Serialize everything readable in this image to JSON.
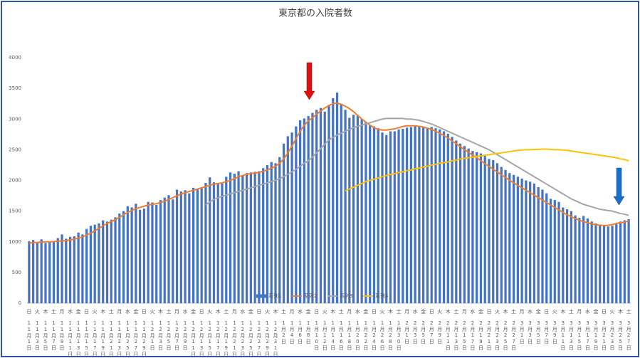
{
  "chart_data": {
    "type": "bar_line",
    "title": "東京都の入院者数",
    "categories": [
      "11月1日",
      null,
      "11月3日",
      null,
      "11月5日",
      null,
      "11月7日",
      null,
      "11月9日",
      null,
      "11月11日",
      null,
      "11月13日",
      null,
      "11月15日",
      null,
      "11月17日",
      null,
      "11月19日",
      null,
      "11月21日",
      null,
      "11月23日",
      null,
      "11月25日",
      null,
      "11月27日",
      null,
      "11月29日",
      null,
      "12月1日",
      null,
      "12月3日",
      null,
      "12月5日",
      null,
      "12月7日",
      null,
      "12月9日",
      null,
      "12月11日",
      null,
      "12月13日",
      null,
      "12月15日",
      null,
      "12月17日",
      null,
      "12月19日",
      null,
      "12月21日",
      null,
      "12月23日",
      null,
      "12月25日",
      null,
      "12月27日",
      null,
      "12月29日",
      null,
      "12月31日",
      null,
      "1月2日",
      null,
      "1月4日",
      null,
      "1月6日",
      null,
      "1月8日",
      null,
      "1月10日",
      null,
      "1月12日",
      null,
      "1月14日",
      null,
      "1月16日",
      null,
      "1月18日",
      null,
      "1月20日",
      null,
      "1月22日",
      null,
      "1月24日",
      null,
      "1月26日",
      null,
      "1月28日",
      null,
      "1月30日",
      null,
      "2月1日",
      null,
      "2月3日",
      null,
      "2月5日",
      null,
      "2月7日",
      null,
      "2月9日",
      null,
      "2月11日",
      null,
      "2月13日",
      null,
      "2月15日",
      null,
      "2月17日",
      null,
      "2月19日",
      null,
      "2月21日",
      null,
      "2月23日",
      null,
      "2月25日",
      null,
      "2月27日",
      null,
      "3月1日",
      null,
      "3月3日",
      null,
      "3月5日",
      null,
      "3月7日",
      null,
      "3月9日",
      null,
      "3月11日",
      null,
      "3月13日",
      null,
      "3月15日",
      null,
      "3月17日",
      null,
      "3月19日",
      null,
      "3月21日",
      null,
      "3月23日",
      null,
      "3月25日",
      null,
      "3月27日"
    ],
    "weekdays": [
      "日",
      null,
      "火",
      null,
      "木",
      null,
      "土",
      null,
      "月",
      null,
      "水",
      null,
      "金",
      null,
      "日",
      null,
      "火",
      null,
      "木",
      null,
      "土",
      null,
      "月",
      null,
      "水",
      null,
      "金",
      null,
      "日",
      null,
      "火",
      null,
      "木",
      null,
      "土",
      null,
      "月",
      null,
      "水",
      null,
      "金",
      null,
      "日",
      null,
      "火",
      null,
      "木",
      null,
      "土",
      null,
      "月",
      null,
      "水",
      null,
      "金",
      null,
      "日",
      null,
      "火",
      null,
      "木",
      null,
      "土",
      null,
      "月",
      null,
      "水",
      null,
      "金",
      null,
      "日",
      null,
      "火",
      null,
      "木",
      null,
      "土",
      null,
      "月",
      null,
      "水",
      null,
      "金",
      null,
      "日",
      null,
      "火",
      null,
      "木",
      null,
      "土",
      null,
      "月",
      null,
      "水",
      null,
      "金",
      null,
      "日",
      null,
      "火",
      null,
      "木",
      null,
      "土",
      null,
      "月",
      null,
      "水",
      null,
      "金",
      null,
      "日",
      null,
      "火",
      null,
      "木",
      null,
      "土",
      null,
      "月",
      null,
      "水",
      null,
      "金",
      null,
      "日",
      null,
      "火",
      null,
      "木",
      null,
      "土",
      null,
      "月",
      null,
      "水",
      null,
      "金",
      null,
      "日",
      null,
      "火",
      null,
      "木",
      null,
      "土"
    ],
    "series": [
      {
        "name": "系列1",
        "type": "bar",
        "color": "#4472c4",
        "values": [
          1010,
          1030,
          990,
          1040,
          980,
          990,
          1010,
          1060,
          1120,
          1050,
          1080,
          1090,
          1150,
          1120,
          1210,
          1260,
          1280,
          1300,
          1350,
          1330,
          1360,
          1400,
          1460,
          1500,
          1580,
          1560,
          1620,
          1520,
          1540,
          1650,
          1640,
          1600,
          1680,
          1720,
          1760,
          1690,
          1850,
          1820,
          1840,
          1790,
          1880,
          1860,
          1870,
          1960,
          2050,
          1970,
          1960,
          1950,
          2060,
          2130,
          2110,
          2150,
          2080,
          2120,
          2130,
          2140,
          2150,
          2200,
          2250,
          2300,
          2280,
          2380,
          2600,
          2720,
          2780,
          2880,
          2980,
          3010,
          3050,
          3100,
          3150,
          3180,
          3120,
          3230,
          3340,
          3430,
          3250,
          3150,
          3020,
          3070,
          3060,
          3000,
          2950,
          2900,
          2880,
          2850,
          2780,
          2740,
          2800,
          2800,
          2830,
          2840,
          2860,
          2870,
          2890,
          2880,
          2870,
          2860,
          2870,
          2850,
          2830,
          2800,
          2760,
          2710,
          2650,
          2600,
          2560,
          2520,
          2480,
          2460,
          2440,
          2400,
          2350,
          2330,
          2280,
          2220,
          2170,
          2120,
          2090,
          2060,
          2030,
          2000,
          1980,
          1950,
          1890,
          1850,
          1790,
          1700,
          1680,
          1650,
          1560,
          1530,
          1500,
          1430,
          1390,
          1420,
          1380,
          1330,
          1300,
          1280,
          1260,
          1250,
          1260,
          1290,
          1330,
          1350,
          1370
        ]
      },
      {
        "name": "系列2",
        "type": "line",
        "color": "#ed7d31",
        "values": [
          980,
          985,
          990,
          995,
          1000,
          1000,
          1005,
          1010,
          1015,
          1020,
          1030,
          1045,
          1060,
          1080,
          1110,
          1140,
          1180,
          1220,
          1260,
          1300,
          1330,
          1360,
          1400,
          1440,
          1480,
          1510,
          1540,
          1560,
          1580,
          1600,
          1610,
          1620,
          1640,
          1660,
          1690,
          1720,
          1750,
          1780,
          1800,
          1820,
          1840,
          1860,
          1880,
          1900,
          1920,
          1940,
          1950,
          1960,
          1980,
          2000,
          2030,
          2060,
          2080,
          2100,
          2110,
          2120,
          2130,
          2150,
          2170,
          2200,
          2230,
          2280,
          2350,
          2450,
          2560,
          2680,
          2800,
          2900,
          2970,
          3020,
          3080,
          3130,
          3180,
          3220,
          3250,
          3260,
          3240,
          3210,
          3170,
          3120,
          3060,
          3000,
          2950,
          2900,
          2860,
          2830,
          2820,
          2820,
          2830,
          2840,
          2860,
          2880,
          2890,
          2890,
          2890,
          2880,
          2870,
          2850,
          2830,
          2800,
          2770,
          2730,
          2690,
          2640,
          2600,
          2550,
          2500,
          2460,
          2410,
          2370,
          2320,
          2270,
          2230,
          2180,
          2140,
          2090,
          2050,
          2000,
          1960,
          1920,
          1880,
          1840,
          1800,
          1760,
          1720,
          1680,
          1640,
          1600,
          1560,
          1520,
          1480,
          1440,
          1410,
          1380,
          1350,
          1330,
          1310,
          1290,
          1280,
          1270,
          1265,
          1270,
          1280,
          1300,
          1310,
          1320,
          1340
        ]
      },
      {
        "name": "系列3",
        "type": "line",
        "color": "#a5a5a5",
        "values": [
          null,
          null,
          null,
          null,
          null,
          null,
          null,
          null,
          null,
          null,
          null,
          null,
          null,
          null,
          null,
          null,
          null,
          null,
          null,
          null,
          null,
          null,
          null,
          null,
          null,
          null,
          null,
          null,
          null,
          null,
          null,
          null,
          null,
          null,
          null,
          null,
          null,
          null,
          null,
          null,
          null,
          null,
          null,
          1600,
          1650,
          1690,
          1720,
          1740,
          1760,
          1780,
          1800,
          1820,
          1840,
          1860,
          1880,
          1900,
          1920,
          1940,
          1960,
          1980,
          2000,
          2030,
          2060,
          2100,
          2140,
          2180,
          2230,
          2280,
          2320,
          2380,
          2450,
          2520,
          2590,
          2660,
          2700,
          2740,
          2770,
          2800,
          2830,
          2860,
          2880,
          2900,
          2920,
          2940,
          2960,
          2980,
          3000,
          3010,
          3010,
          3010,
          3010,
          3010,
          3000,
          3000,
          2990,
          2980,
          2960,
          2940,
          2920,
          2890,
          2860,
          2830,
          2800,
          2770,
          2740,
          2710,
          2680,
          2650,
          2620,
          2590,
          2560,
          2530,
          2500,
          2460,
          2420,
          2380,
          2340,
          2300,
          2260,
          2220,
          2180,
          2140,
          2100,
          2060,
          2020,
          1980,
          1940,
          1900,
          1860,
          1820,
          1780,
          1740,
          1700,
          1670,
          1640,
          1610,
          1590,
          1570,
          1550,
          1530,
          1520,
          1510,
          1500,
          1480,
          1460,
          1450,
          1430
        ]
      },
      {
        "name": "系列4",
        "type": "line",
        "color": "#ffc000",
        "values": [
          null,
          null,
          null,
          null,
          null,
          null,
          null,
          null,
          null,
          null,
          null,
          null,
          null,
          null,
          null,
          null,
          null,
          null,
          null,
          null,
          null,
          null,
          null,
          null,
          null,
          null,
          null,
          null,
          null,
          null,
          null,
          null,
          null,
          null,
          null,
          null,
          null,
          null,
          null,
          null,
          null,
          null,
          null,
          null,
          null,
          null,
          null,
          null,
          null,
          null,
          null,
          null,
          null,
          null,
          null,
          null,
          null,
          null,
          null,
          null,
          null,
          null,
          null,
          null,
          null,
          null,
          null,
          null,
          null,
          null,
          null,
          null,
          null,
          null,
          null,
          null,
          null,
          1830,
          1860,
          1890,
          1920,
          1950,
          1980,
          2000,
          2020,
          2040,
          2060,
          2080,
          2100,
          2110,
          2130,
          2140,
          2160,
          2170,
          2190,
          2200,
          2220,
          2230,
          2250,
          2260,
          2280,
          2290,
          2300,
          2320,
          2330,
          2350,
          2360,
          2370,
          2380,
          2390,
          2400,
          2410,
          2420,
          2430,
          2440,
          2450,
          2460,
          2470,
          2480,
          2490,
          2495,
          2500,
          2500,
          2505,
          2505,
          2510,
          2510,
          2505,
          2500,
          2500,
          2495,
          2490,
          2480,
          2470,
          2460,
          2450,
          2440,
          2430,
          2420,
          2410,
          2400,
          2390,
          2380,
          2370,
          2350,
          2340,
          2320
        ]
      }
    ],
    "ylim": [
      0,
      4000
    ],
    "yticks": [
      0,
      500,
      1000,
      1500,
      2000,
      2500,
      3000,
      3500,
      4000
    ],
    "grid": false,
    "legend": "bottom"
  }
}
